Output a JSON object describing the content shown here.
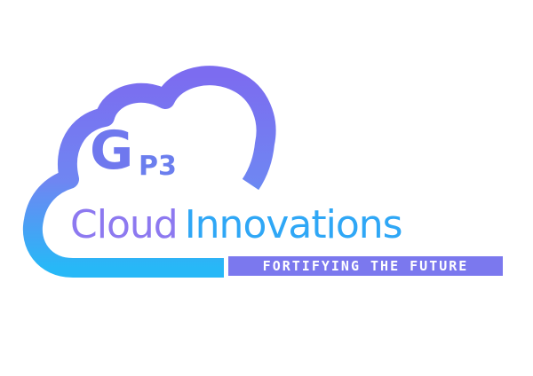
{
  "logo": {
    "mark_letter": "G",
    "mark_suffix": "P3",
    "name_part1": "Cloud",
    "name_part2": "Innovations",
    "tagline": "FORTIFYING THE FUTURE"
  },
  "colors": {
    "gradient_top": "#7c6cf0",
    "gradient_bottom": "#27b8f7",
    "name_part1": "#8d79f0",
    "name_part2": "#2fa7f6",
    "tagline_bar": "#7b78ee",
    "tagline_text": "#ffffff",
    "background": "#ffffff"
  },
  "icons": {
    "cloud": "cloud-icon"
  }
}
